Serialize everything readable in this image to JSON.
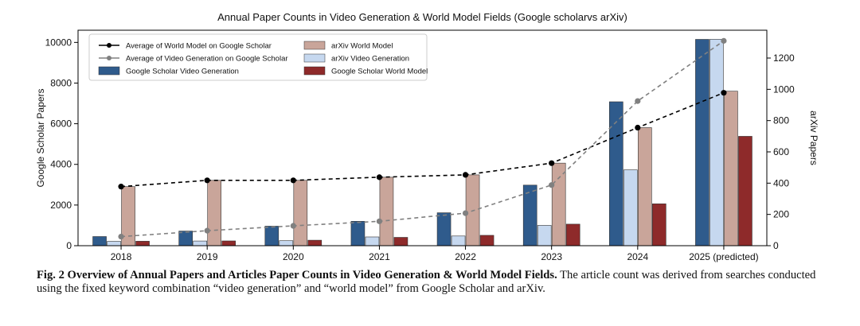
{
  "chart_data": {
    "type": "bar",
    "title": "Annual Paper Counts in Video Generation & World Model Fields (Google scholarvs arXiv)",
    "categories": [
      "2018",
      "2019",
      "2020",
      "2021",
      "2022",
      "2023",
      "2024",
      "2025 (predicted)"
    ],
    "ylabel": "Google Scholar Papers",
    "y2label": "arXiv Papers",
    "ylim": [
      0,
      10600
    ],
    "y2lim": [
      0,
      1378
    ],
    "yticks": [
      0,
      2000,
      4000,
      6000,
      8000,
      10000
    ],
    "y2ticks": [
      0,
      200,
      400,
      600,
      800,
      1000,
      1200
    ],
    "legend_position": "top-left",
    "grid": false,
    "series": [
      {
        "name": "Google Scholar Video Generation",
        "kind": "bar",
        "axis": "left",
        "color": "#2f5b8c",
        "values": [
          450,
          720,
          960,
          1200,
          1620,
          2980,
          7080,
          10150
        ]
      },
      {
        "name": "arXiv Video Generation",
        "kind": "bar",
        "axis": "right",
        "color": "#c6d8ef",
        "values": [
          28,
          30,
          32,
          56,
          62,
          130,
          485,
          1320
        ]
      },
      {
        "name": "arXiv World Model",
        "kind": "bar",
        "axis": "right",
        "color": "#c9a59a",
        "values": [
          378,
          418,
          418,
          438,
          453,
          528,
          755,
          988
        ]
      },
      {
        "name": "Google Scholar World Model",
        "kind": "bar",
        "axis": "left",
        "color": "#8e2a2a",
        "values": [
          220,
          235,
          270,
          410,
          510,
          1060,
          2060,
          5380
        ]
      },
      {
        "name": "Average of World Model on Google Scholar",
        "kind": "line",
        "axis": "right",
        "color": "#000000",
        "dash": true,
        "values": [
          378,
          418,
          418,
          438,
          453,
          528,
          755,
          978
        ]
      },
      {
        "name": "Average of Video Generation on Google Scholar",
        "kind": "line",
        "axis": "right",
        "color": "#808080",
        "dash": true,
        "values": [
          58,
          96,
          127,
          156,
          208,
          388,
          925,
          1310
        ]
      }
    ],
    "legend_order": [
      "Average of World Model on Google Scholar",
      "arXiv World Model",
      "Average of Video Generation on Google Scholar",
      "arXiv Video Generation",
      "Google Scholar Video Generation",
      "Google Scholar World Model"
    ]
  },
  "caption": {
    "label": "Fig. 2  Overview of Annual Papers and Articles Paper Counts in Video Generation & World Model Fields.",
    "text": " The article count was derived from searches conducted using the fixed keyword combination “video generation” and “world model” from Google Scholar and arXiv."
  }
}
